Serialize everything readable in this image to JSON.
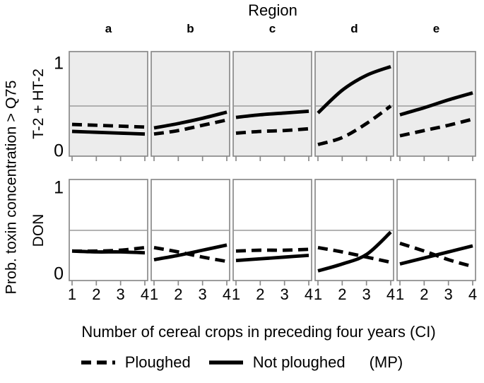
{
  "title": "Region",
  "ylabel_outer": "Prob. toxin concentration > Q75",
  "xlabel": "Number of cereal crops in preceding four years (CI)",
  "legend": {
    "ploughed_label": "Ploughed",
    "not_ploughed_label": "Not ploughed",
    "suffix": "(MP)"
  },
  "colors": {
    "panel_border": "#8a8a8a",
    "gridline": "#a8a8a8",
    "shaded_fill": "#ececec",
    "unshaded_fill": "#ffffff",
    "line": "#000000"
  },
  "chart_data": {
    "type": "line",
    "x": [
      1,
      2,
      3,
      4
    ],
    "x_ticks": [
      "1",
      "2",
      "3",
      "4"
    ],
    "y_ticks": [
      "0",
      "1"
    ],
    "ylim": [
      0,
      1
    ],
    "gridline_y": 0.5,
    "grid": "horizontal line at 0.5 only",
    "legend_position": "bottom",
    "columns": [
      "a",
      "b",
      "c",
      "d",
      "e"
    ],
    "series_styles": {
      "ploughed": "dashed",
      "not_ploughed": "solid"
    },
    "rows": [
      {
        "label": "T-2 + HT-2",
        "shaded": true,
        "panels": [
          {
            "region": "a",
            "ploughed": [
              0.29,
              0.28,
              0.27,
              0.26
            ],
            "not_ploughed": [
              0.21,
              0.2,
              0.19,
              0.18
            ]
          },
          {
            "region": "b",
            "ploughed": [
              0.18,
              0.22,
              0.28,
              0.34
            ],
            "not_ploughed": [
              0.25,
              0.3,
              0.36,
              0.43
            ]
          },
          {
            "region": "c",
            "ploughed": [
              0.19,
              0.21,
              0.22,
              0.24
            ],
            "not_ploughed": [
              0.37,
              0.4,
              0.42,
              0.44
            ]
          },
          {
            "region": "d",
            "ploughed": [
              0.06,
              0.14,
              0.3,
              0.5
            ],
            "not_ploughed": [
              0.42,
              0.68,
              0.85,
              0.95
            ]
          },
          {
            "region": "e",
            "ploughed": [
              0.16,
              0.22,
              0.28,
              0.35
            ],
            "not_ploughed": [
              0.4,
              0.48,
              0.57,
              0.65
            ]
          }
        ]
      },
      {
        "label": "DON",
        "shaded": false,
        "panels": [
          {
            "region": "a",
            "ploughed": [
              0.26,
              0.26,
              0.27,
              0.3
            ],
            "not_ploughed": [
              0.26,
              0.25,
              0.25,
              0.24
            ]
          },
          {
            "region": "b",
            "ploughed": [
              0.3,
              0.25,
              0.19,
              0.14
            ],
            "not_ploughed": [
              0.16,
              0.21,
              0.27,
              0.33
            ]
          },
          {
            "region": "c",
            "ploughed": [
              0.26,
              0.27,
              0.27,
              0.28
            ],
            "not_ploughed": [
              0.15,
              0.17,
              0.19,
              0.21
            ]
          },
          {
            "region": "d",
            "ploughed": [
              0.3,
              0.25,
              0.19,
              0.13
            ],
            "not_ploughed": [
              0.03,
              0.11,
              0.22,
              0.48
            ]
          },
          {
            "region": "e",
            "ploughed": [
              0.35,
              0.26,
              0.16,
              0.08
            ],
            "not_ploughed": [
              0.11,
              0.18,
              0.25,
              0.32
            ]
          }
        ]
      }
    ]
  }
}
